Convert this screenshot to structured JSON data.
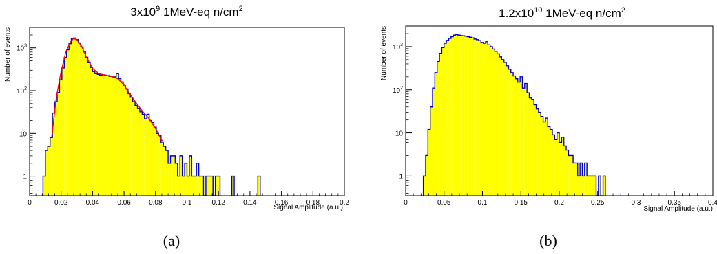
{
  "chart_data": [
    {
      "panel": "a",
      "type": "histogram",
      "caption": "(a)",
      "title": {
        "base": "3x10",
        "exp": "9",
        "rest": " 1MeV-eq n/cm",
        "unit_exp": "2"
      },
      "xlabel": "Signal Amplitude (a.u.)",
      "ylabel": "Number of events",
      "xlim": [
        0,
        0.2
      ],
      "ylim": [
        0.35,
        3000
      ],
      "yscale": "log",
      "x_ticks": [
        0,
        0.02,
        0.04,
        0.06,
        0.08,
        0.1,
        0.12,
        0.14,
        0.16,
        0.18,
        0.2
      ],
      "x_tick_labels": [
        "0",
        "0.02",
        "0.04",
        "0.06",
        "0.08",
        "0.1",
        "0.12",
        "0.14",
        "0.16",
        "0.18",
        "0.2"
      ],
      "y_ticks": [
        1,
        10,
        100,
        1000
      ],
      "y_tick_labels": [
        {
          "base": "1",
          "exp": ""
        },
        {
          "base": "10",
          "exp": ""
        },
        {
          "base": "10",
          "exp": "2"
        },
        {
          "base": "10",
          "exp": "3"
        }
      ],
      "fill_color": "#ffff00",
      "line_color": "#0000cc",
      "fit_color": "#ff0000",
      "bins": [
        [
          0.0085,
          0.01,
          1
        ],
        [
          0.01,
          0.0115,
          4
        ],
        [
          0.0115,
          0.013,
          5
        ],
        [
          0.013,
          0.0145,
          8
        ],
        [
          0.0145,
          0.016,
          30
        ],
        [
          0.016,
          0.0175,
          55
        ],
        [
          0.0175,
          0.019,
          90
        ],
        [
          0.019,
          0.0205,
          180
        ],
        [
          0.0205,
          0.022,
          340
        ],
        [
          0.022,
          0.0235,
          600
        ],
        [
          0.0235,
          0.025,
          900
        ],
        [
          0.025,
          0.0265,
          1250
        ],
        [
          0.0265,
          0.028,
          1650
        ],
        [
          0.028,
          0.0295,
          1700
        ],
        [
          0.0295,
          0.031,
          1550
        ],
        [
          0.031,
          0.0325,
          1300
        ],
        [
          0.0325,
          0.034,
          1050
        ],
        [
          0.034,
          0.0355,
          800
        ],
        [
          0.0355,
          0.037,
          600
        ],
        [
          0.037,
          0.0385,
          450
        ],
        [
          0.0385,
          0.04,
          350
        ],
        [
          0.04,
          0.0415,
          280
        ],
        [
          0.0415,
          0.043,
          250
        ],
        [
          0.043,
          0.0445,
          240
        ],
        [
          0.0445,
          0.046,
          230
        ],
        [
          0.046,
          0.0475,
          235
        ],
        [
          0.0475,
          0.049,
          230
        ],
        [
          0.049,
          0.0505,
          225
        ],
        [
          0.0505,
          0.052,
          215
        ],
        [
          0.052,
          0.0535,
          220
        ],
        [
          0.0535,
          0.055,
          210
        ],
        [
          0.055,
          0.0565,
          250
        ],
        [
          0.0565,
          0.058,
          190
        ],
        [
          0.058,
          0.0595,
          160
        ],
        [
          0.0595,
          0.061,
          130
        ],
        [
          0.061,
          0.0625,
          110
        ],
        [
          0.0625,
          0.064,
          85
        ],
        [
          0.064,
          0.0655,
          70
        ],
        [
          0.0655,
          0.067,
          55
        ],
        [
          0.067,
          0.0685,
          45
        ],
        [
          0.0685,
          0.07,
          38
        ],
        [
          0.07,
          0.0715,
          32
        ],
        [
          0.0715,
          0.073,
          28
        ],
        [
          0.073,
          0.0745,
          22
        ],
        [
          0.0745,
          0.076,
          28
        ],
        [
          0.076,
          0.0775,
          20
        ],
        [
          0.0775,
          0.079,
          18
        ],
        [
          0.079,
          0.0805,
          14
        ],
        [
          0.0805,
          0.082,
          10
        ],
        [
          0.082,
          0.0835,
          9
        ],
        [
          0.0835,
          0.085,
          6
        ],
        [
          0.085,
          0.0865,
          5
        ],
        [
          0.0865,
          0.088,
          4
        ],
        [
          0.088,
          0.0895,
          2
        ],
        [
          0.0895,
          0.091,
          3
        ],
        [
          0.091,
          0.0925,
          3
        ],
        [
          0.0925,
          0.094,
          2
        ],
        [
          0.094,
          0.0955,
          1
        ],
        [
          0.0955,
          0.097,
          3
        ],
        [
          0.097,
          0.0985,
          1
        ],
        [
          0.0985,
          0.1,
          2
        ],
        [
          0.1,
          0.1015,
          1
        ],
        [
          0.1015,
          0.103,
          3
        ],
        [
          0.103,
          0.1045,
          1
        ],
        [
          0.1045,
          0.106,
          1
        ],
        [
          0.106,
          0.1075,
          2
        ],
        [
          0.1075,
          0.109,
          1
        ],
        [
          0.109,
          0.1105,
          1
        ],
        [
          0.1105,
          0.112,
          0
        ],
        [
          0.112,
          0.1135,
          1
        ],
        [
          0.1135,
          0.115,
          1
        ],
        [
          0.115,
          0.1165,
          1
        ],
        [
          0.1165,
          0.118,
          0
        ],
        [
          0.118,
          0.1195,
          1
        ],
        [
          0.1195,
          0.121,
          1
        ],
        [
          0.1285,
          0.13,
          1
        ],
        [
          0.145,
          0.1465,
          1
        ]
      ],
      "fit": [
        [
          0.014,
          8
        ],
        [
          0.017,
          70
        ],
        [
          0.02,
          280
        ],
        [
          0.023,
          800
        ],
        [
          0.026,
          1400
        ],
        [
          0.028,
          1650
        ],
        [
          0.03,
          1550
        ],
        [
          0.033,
          1100
        ],
        [
          0.036,
          620
        ],
        [
          0.04,
          330
        ],
        [
          0.044,
          250
        ],
        [
          0.048,
          230
        ],
        [
          0.052,
          215
        ],
        [
          0.056,
          190
        ],
        [
          0.06,
          135
        ],
        [
          0.064,
          80
        ],
        [
          0.068,
          50
        ],
        [
          0.072,
          32
        ],
        [
          0.076,
          22
        ],
        [
          0.08,
          13
        ],
        [
          0.083,
          8
        ],
        [
          0.085,
          6
        ]
      ]
    },
    {
      "panel": "b",
      "type": "histogram",
      "caption": "(b)",
      "title": {
        "base": "1.2x10",
        "exp": "10",
        "rest": " 1MeV-eq n/cm",
        "unit_exp": "2"
      },
      "xlabel": "Signal Amplitude (a.u.)",
      "ylabel": "Number of events",
      "xlim": [
        0,
        0.4
      ],
      "ylim": [
        0.35,
        3000
      ],
      "yscale": "log",
      "x_ticks": [
        0,
        0.05,
        0.1,
        0.15,
        0.2,
        0.25,
        0.3,
        0.35,
        0.4
      ],
      "x_tick_labels": [
        "0",
        "0.05",
        "0.1",
        "0.15",
        "0.2",
        "0.25",
        "0.3",
        "0.35",
        "0.4"
      ],
      "y_ticks": [
        1,
        10,
        100,
        1000
      ],
      "y_tick_labels": [
        {
          "base": "1",
          "exp": ""
        },
        {
          "base": "10",
          "exp": ""
        },
        {
          "base": "10",
          "exp": "2"
        },
        {
          "base": "10",
          "exp": "3"
        }
      ],
      "fill_color": "#ffff00",
      "line_color": "#0000cc",
      "bins": [
        [
          0.023,
          0.026,
          1
        ],
        [
          0.026,
          0.029,
          3
        ],
        [
          0.029,
          0.032,
          12
        ],
        [
          0.032,
          0.035,
          40
        ],
        [
          0.035,
          0.038,
          110
        ],
        [
          0.038,
          0.041,
          250
        ],
        [
          0.041,
          0.044,
          450
        ],
        [
          0.044,
          0.047,
          700
        ],
        [
          0.047,
          0.05,
          950
        ],
        [
          0.05,
          0.053,
          1200
        ],
        [
          0.053,
          0.056,
          1400
        ],
        [
          0.056,
          0.059,
          1550
        ],
        [
          0.059,
          0.062,
          1700
        ],
        [
          0.062,
          0.065,
          1850
        ],
        [
          0.065,
          0.068,
          1900
        ],
        [
          0.068,
          0.071,
          1850
        ],
        [
          0.071,
          0.074,
          1800
        ],
        [
          0.074,
          0.077,
          1780
        ],
        [
          0.077,
          0.08,
          1750
        ],
        [
          0.08,
          0.083,
          1700
        ],
        [
          0.083,
          0.086,
          1650
        ],
        [
          0.086,
          0.089,
          1600
        ],
        [
          0.089,
          0.092,
          1500
        ],
        [
          0.092,
          0.095,
          1450
        ],
        [
          0.095,
          0.098,
          1380
        ],
        [
          0.098,
          0.101,
          1250
        ],
        [
          0.101,
          0.104,
          1200
        ],
        [
          0.104,
          0.107,
          1300
        ],
        [
          0.107,
          0.11,
          1100
        ],
        [
          0.11,
          0.113,
          1000
        ],
        [
          0.113,
          0.116,
          880
        ],
        [
          0.116,
          0.119,
          780
        ],
        [
          0.119,
          0.122,
          680
        ],
        [
          0.122,
          0.125,
          580
        ],
        [
          0.125,
          0.128,
          500
        ],
        [
          0.128,
          0.131,
          430
        ],
        [
          0.131,
          0.134,
          360
        ],
        [
          0.134,
          0.137,
          300
        ],
        [
          0.137,
          0.14,
          250
        ],
        [
          0.14,
          0.143,
          210
        ],
        [
          0.143,
          0.146,
          180
        ],
        [
          0.146,
          0.149,
          150
        ],
        [
          0.149,
          0.152,
          200
        ],
        [
          0.152,
          0.155,
          110
        ],
        [
          0.155,
          0.158,
          140
        ],
        [
          0.158,
          0.161,
          85
        ],
        [
          0.161,
          0.164,
          65
        ],
        [
          0.164,
          0.167,
          60
        ],
        [
          0.167,
          0.17,
          45
        ],
        [
          0.17,
          0.173,
          36
        ],
        [
          0.173,
          0.176,
          30
        ],
        [
          0.176,
          0.179,
          24
        ],
        [
          0.179,
          0.182,
          18
        ],
        [
          0.182,
          0.185,
          22
        ],
        [
          0.185,
          0.188,
          14
        ],
        [
          0.188,
          0.191,
          12
        ],
        [
          0.191,
          0.194,
          9
        ],
        [
          0.194,
          0.197,
          7
        ],
        [
          0.197,
          0.2,
          10
        ],
        [
          0.2,
          0.203,
          6
        ],
        [
          0.203,
          0.206,
          8
        ],
        [
          0.206,
          0.209,
          5
        ],
        [
          0.209,
          0.212,
          4
        ],
        [
          0.212,
          0.215,
          3
        ],
        [
          0.215,
          0.218,
          3
        ],
        [
          0.218,
          0.221,
          2
        ],
        [
          0.221,
          0.224,
          2
        ],
        [
          0.224,
          0.227,
          1
        ],
        [
          0.227,
          0.23,
          2
        ],
        [
          0.23,
          0.233,
          1
        ],
        [
          0.233,
          0.236,
          2
        ],
        [
          0.236,
          0.239,
          1
        ],
        [
          0.239,
          0.242,
          1
        ],
        [
          0.242,
          0.245,
          1
        ],
        [
          0.245,
          0.248,
          1
        ],
        [
          0.248,
          0.251,
          0
        ],
        [
          0.251,
          0.254,
          1
        ],
        [
          0.254,
          0.257,
          0
        ],
        [
          0.257,
          0.26,
          1
        ]
      ]
    }
  ]
}
